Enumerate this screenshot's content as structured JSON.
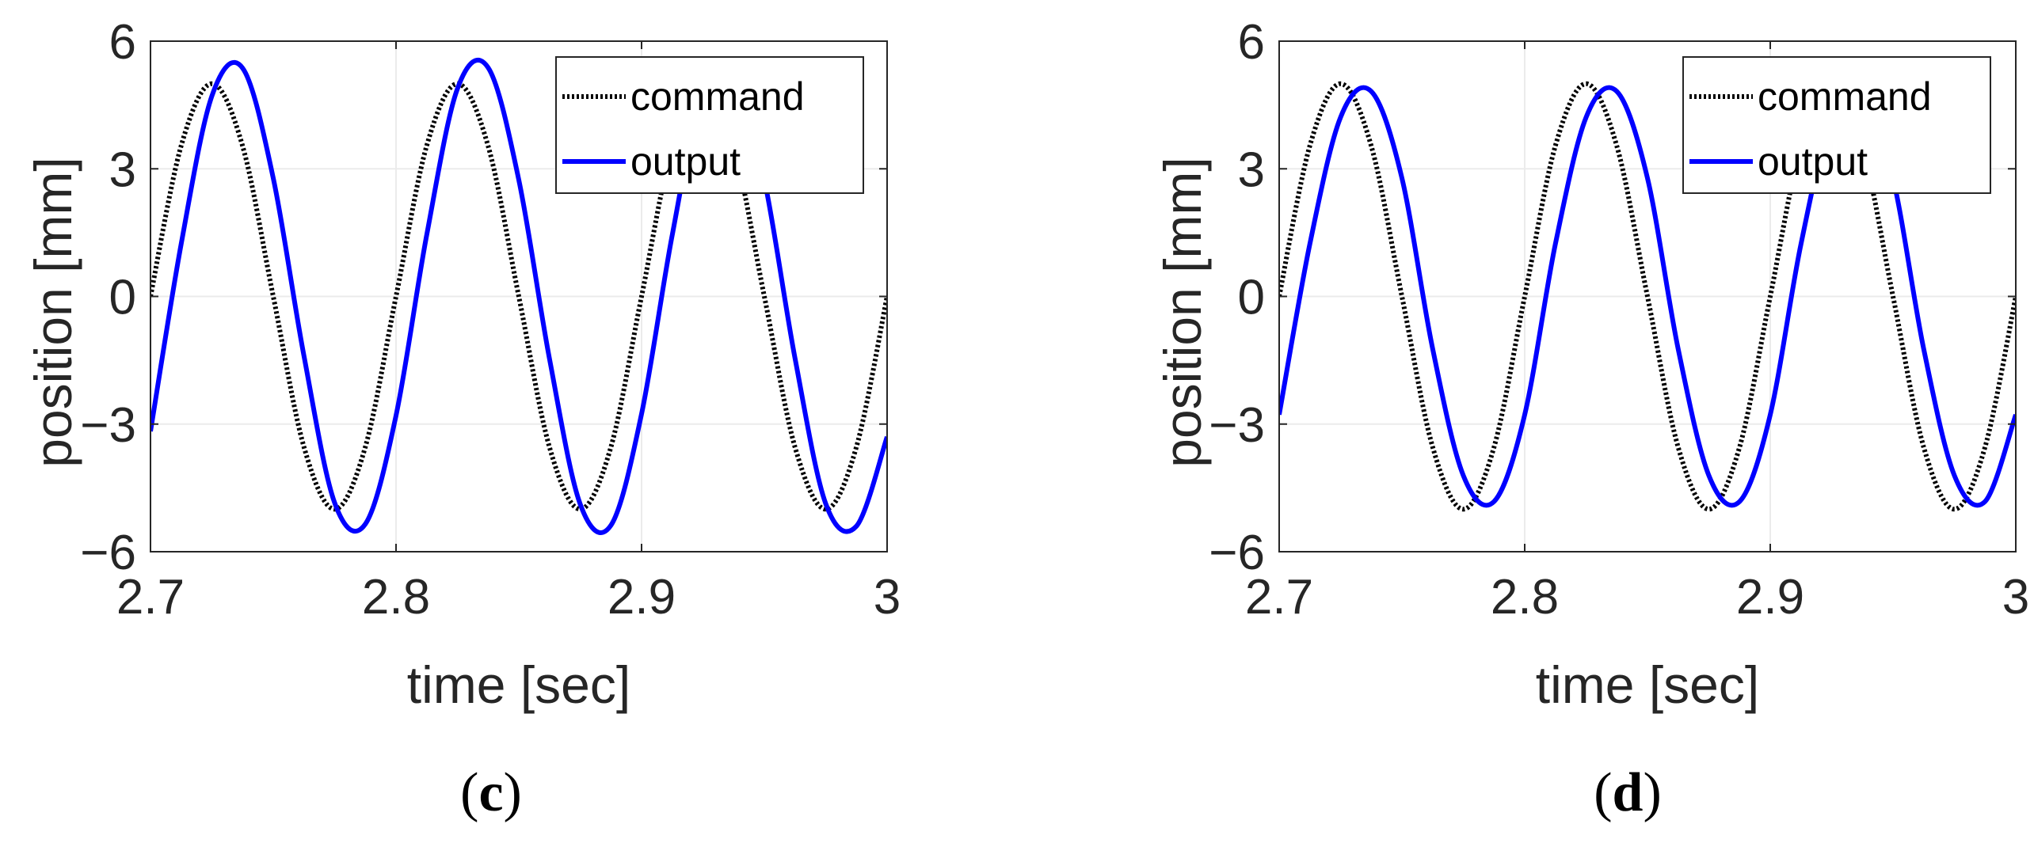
{
  "colors": {
    "command": "#000000",
    "output": "#0000ff",
    "grid": "#ebebeb",
    "axes": "#262626"
  },
  "chart_data": [
    {
      "type": "line",
      "caption": {
        "open": "(",
        "letter": "c",
        "close": ")"
      },
      "xlabel": "time [sec]",
      "ylabel": "position [mm]",
      "xlim": [
        2.7,
        3.0
      ],
      "ylim": [
        -6,
        6
      ],
      "xticks": [
        "2.7",
        "2.8",
        "2.9",
        "3"
      ],
      "yticks": [
        "−6",
        "−3",
        "0",
        "3",
        "6"
      ],
      "grid": true,
      "legend": "top-right",
      "series": [
        {
          "name": "command",
          "style": "dotted",
          "x": [
            2.7,
            2.7125,
            2.725,
            2.7375,
            2.75,
            2.7625,
            2.775,
            2.7875,
            2.8,
            2.8125,
            2.825,
            2.8375,
            2.85,
            2.8625,
            2.875,
            2.8875,
            2.9,
            2.9125,
            2.925,
            2.9375,
            2.95,
            2.9625,
            2.975,
            2.9875,
            3.0
          ],
          "y": [
            0.0,
            3.54,
            5.0,
            3.54,
            0.0,
            -3.54,
            -5.0,
            -3.54,
            0.0,
            3.54,
            5.0,
            3.54,
            0.0,
            -3.54,
            -5.0,
            -3.54,
            0.0,
            3.54,
            5.0,
            3.54,
            0.0,
            -3.54,
            -5.0,
            -3.54,
            0.0
          ]
        },
        {
          "name": "output",
          "style": "solid",
          "x": [
            2.7,
            2.7125,
            2.725,
            2.7375,
            2.75,
            2.7625,
            2.775,
            2.7875,
            2.8,
            2.8125,
            2.825,
            2.8375,
            2.85,
            2.8625,
            2.875,
            2.8875,
            2.9,
            2.9125,
            2.925,
            2.9375,
            2.95,
            2.9625,
            2.975,
            2.9875,
            3.0
          ],
          "y": [
            -3.17,
            1.23,
            4.71,
            5.37,
            2.78,
            -1.4,
            -4.85,
            -5.35,
            -2.8,
            1.44,
            4.88,
            5.38,
            2.74,
            -1.46,
            -4.88,
            -5.38,
            -2.76,
            1.45,
            4.87,
            5.38,
            2.75,
            -1.45,
            -4.87,
            -5.4,
            -3.3
          ]
        }
      ]
    },
    {
      "type": "line",
      "caption": {
        "open": "(",
        "letter": "d",
        "close": ")"
      },
      "xlabel": "time [sec]",
      "ylabel": "position [mm]",
      "xlim": [
        2.7,
        3.0
      ],
      "ylim": [
        -6,
        6
      ],
      "xticks": [
        "2.7",
        "2.8",
        "2.9",
        "3"
      ],
      "yticks": [
        "−6",
        "−3",
        "0",
        "3",
        "6"
      ],
      "grid": true,
      "legend": "top-right",
      "series": [
        {
          "name": "command",
          "style": "dotted",
          "x": [
            2.7,
            2.7125,
            2.725,
            2.7375,
            2.75,
            2.7625,
            2.775,
            2.7875,
            2.8,
            2.8125,
            2.825,
            2.8375,
            2.85,
            2.8625,
            2.875,
            2.8875,
            2.9,
            2.9125,
            2.925,
            2.9375,
            2.95,
            2.9625,
            2.975,
            2.9875,
            3.0
          ],
          "y": [
            0.0,
            3.54,
            5.0,
            3.54,
            0.0,
            -3.54,
            -5.0,
            -3.54,
            0.0,
            3.54,
            5.0,
            3.54,
            0.0,
            -3.54,
            -5.0,
            -3.54,
            0.0,
            3.54,
            5.0,
            3.54,
            0.0,
            -3.54,
            -5.0,
            -3.54,
            0.0
          ]
        },
        {
          "name": "output",
          "style": "solid",
          "x": [
            2.7,
            2.7125,
            2.725,
            2.7375,
            2.75,
            2.7625,
            2.775,
            2.7875,
            2.8,
            2.8125,
            2.825,
            2.8375,
            2.85,
            2.8625,
            2.875,
            2.8875,
            2.9,
            2.9125,
            2.925,
            2.9375,
            2.95,
            2.9625,
            2.975,
            2.9875,
            3.0
          ],
          "y": [
            -2.78,
            1.23,
            4.21,
            4.82,
            2.78,
            -1.23,
            -4.21,
            -4.82,
            -2.78,
            1.23,
            4.21,
            4.82,
            2.78,
            -1.23,
            -4.21,
            -4.82,
            -2.78,
            1.23,
            4.21,
            4.82,
            2.78,
            -1.23,
            -4.21,
            -4.82,
            -2.78
          ]
        }
      ]
    }
  ]
}
